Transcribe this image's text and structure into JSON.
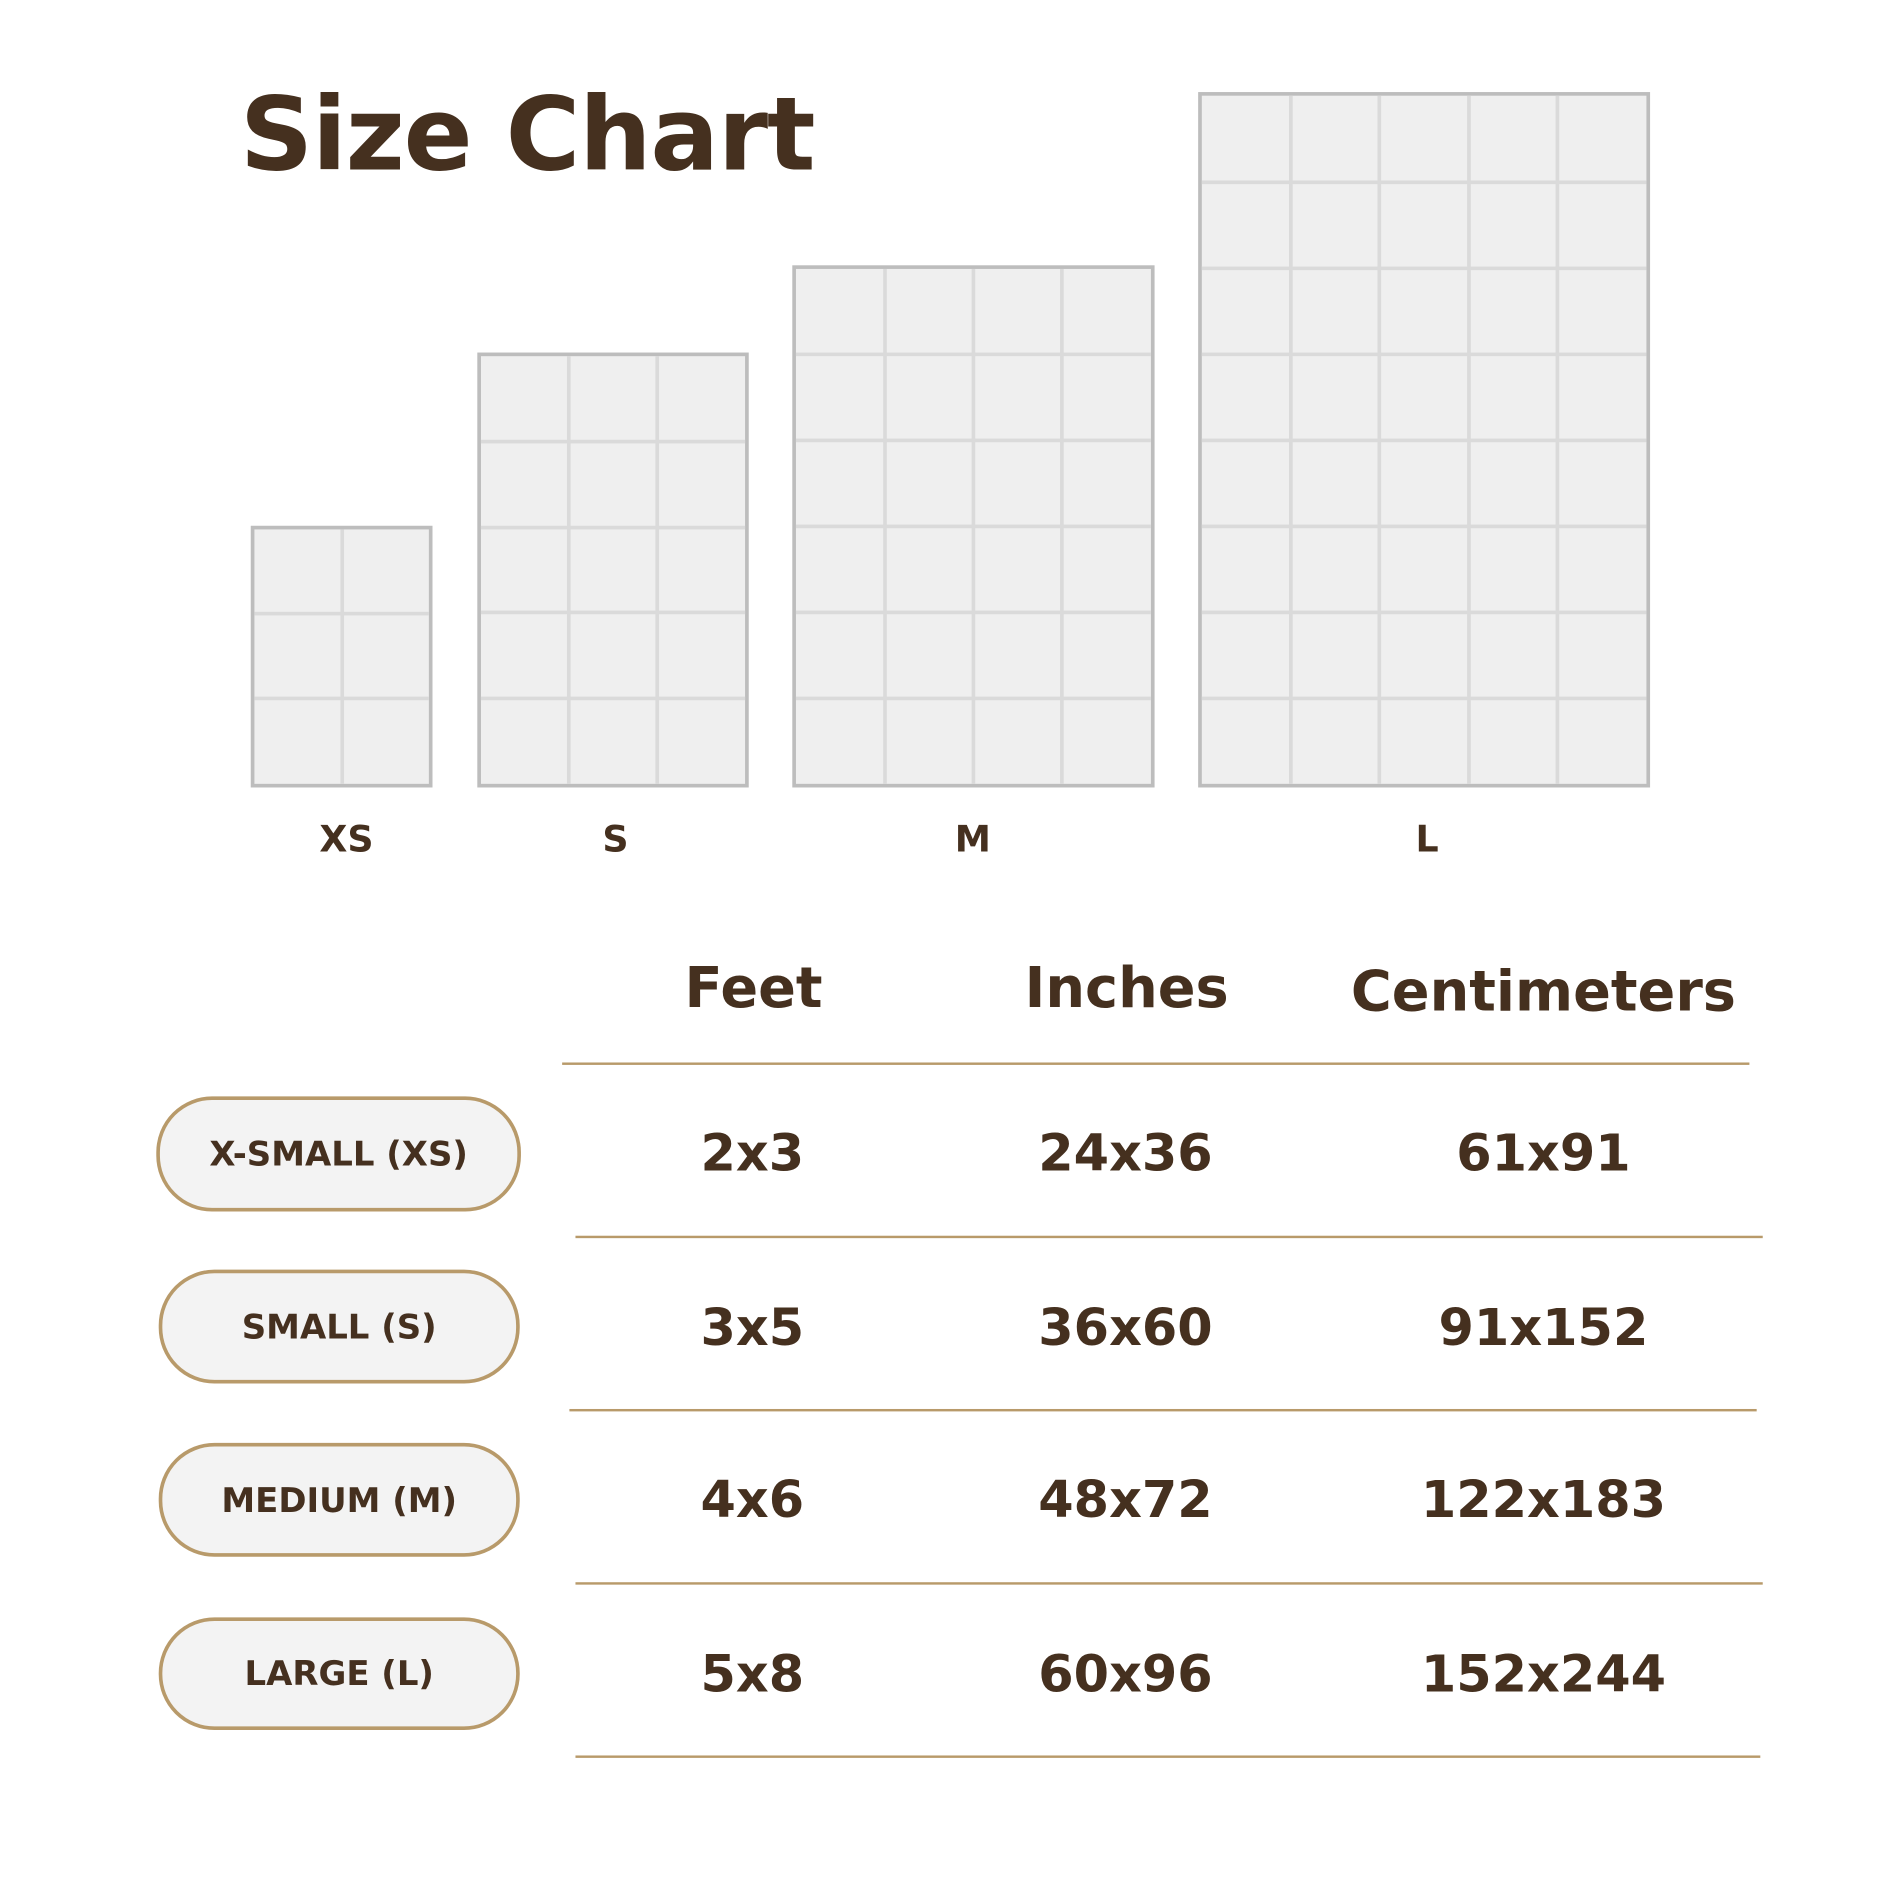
{
  "title": "Size Chart",
  "colors": {
    "text": "#45301f",
    "accent": "#b89a6a",
    "rug_fill": "#efefef",
    "rug_border": "#bdbdbd",
    "pill_fill": "#f3f3f3"
  },
  "rugs": [
    {
      "label": "XS",
      "cols": 2,
      "rows": 3
    },
    {
      "label": "S",
      "cols": 3,
      "rows": 5
    },
    {
      "label": "M",
      "cols": 4,
      "rows": 6
    },
    {
      "label": "L",
      "cols": 5,
      "rows": 8
    }
  ],
  "table": {
    "headers": [
      "Feet",
      "Inches",
      "Centimeters"
    ],
    "rows": [
      {
        "size": "X-SMALL (XS)",
        "feet": "2x3",
        "inches": "24x36",
        "cm": "61x91"
      },
      {
        "size": "SMALL (S)",
        "feet": "3x5",
        "inches": "36x60",
        "cm": "91x152"
      },
      {
        "size": "MEDIUM (M)",
        "feet": "4x6",
        "inches": "48x72",
        "cm": "122x183"
      },
      {
        "size": "LARGE (L)",
        "feet": "5x8",
        "inches": "60x96",
        "cm": "152x244"
      }
    ]
  }
}
